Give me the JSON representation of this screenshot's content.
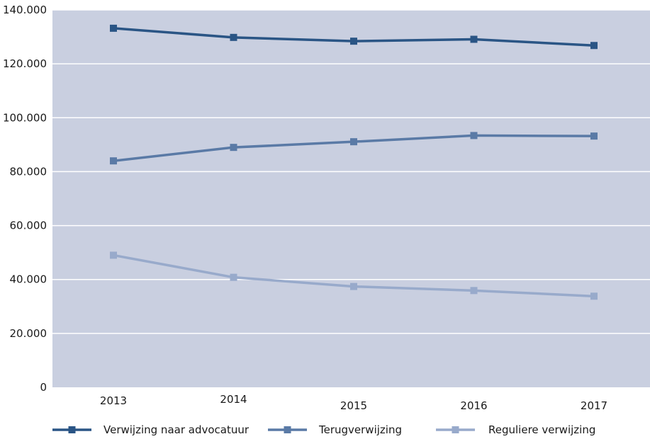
{
  "chart_data": {
    "type": "line",
    "categories": [
      "2013",
      "2014",
      "2015",
      "2016",
      "2017"
    ],
    "series": [
      {
        "name": "Verwijzing naar advocatuur",
        "color": "#2a5585",
        "values": [
          133200,
          129800,
          128400,
          129100,
          126800
        ]
      },
      {
        "name": "Terugverwijzing",
        "color": "#5a7aa6",
        "values": [
          84000,
          89000,
          91100,
          93400,
          93200
        ]
      },
      {
        "name": "Reguliere verwijzing",
        "color": "#98aacb",
        "values": [
          49000,
          40800,
          37400,
          35900,
          33800
        ]
      }
    ],
    "y_ticks": [
      "0",
      "20.000",
      "40.000",
      "60.000",
      "80.000",
      "100.000",
      "120.000",
      "140.000"
    ],
    "ylim": [
      0,
      140000
    ],
    "grid": true,
    "legend_position": "bottom",
    "plot_background": "#c9cfe0",
    "grid_color": "#ffffff"
  }
}
